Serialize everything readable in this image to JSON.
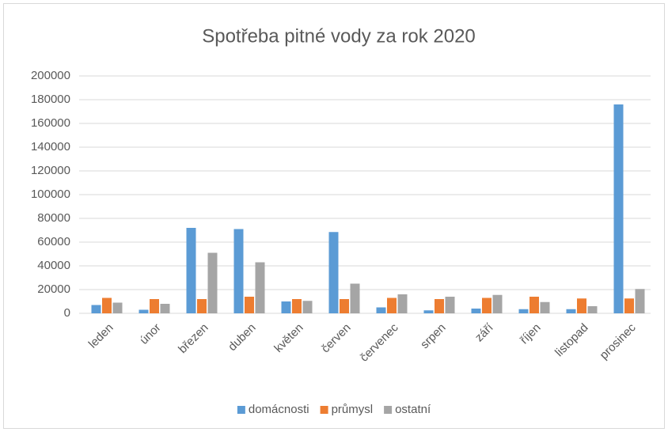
{
  "chart_data": {
    "type": "bar",
    "title": "Spotřeba pitné vody za rok 2020",
    "categories": [
      "leden",
      "únor",
      "březen",
      "duben",
      "květen",
      "červen",
      "červenec",
      "srpen",
      "září",
      "říjen",
      "listopad",
      "prosinec"
    ],
    "series": [
      {
        "name": "domácnosti",
        "color": "#5b9bd5",
        "values": [
          7000,
          3000,
          72000,
          71000,
          10000,
          68500,
          5000,
          2500,
          4000,
          3500,
          3500,
          176000
        ]
      },
      {
        "name": "průmysl",
        "color": "#ed7d31",
        "values": [
          13000,
          12000,
          12000,
          14000,
          12000,
          12000,
          13000,
          12000,
          13000,
          14000,
          12500,
          12500
        ]
      },
      {
        "name": "ostatní",
        "color": "#a5a5a5",
        "values": [
          9000,
          8000,
          51000,
          43000,
          10500,
          25000,
          16000,
          14000,
          15500,
          9500,
          6000,
          20500
        ]
      }
    ],
    "ylim": [
      0,
      200000
    ],
    "yticks": [
      0,
      20000,
      40000,
      60000,
      80000,
      100000,
      120000,
      140000,
      160000,
      180000,
      200000
    ],
    "grid": true,
    "legend": "bottom"
  }
}
